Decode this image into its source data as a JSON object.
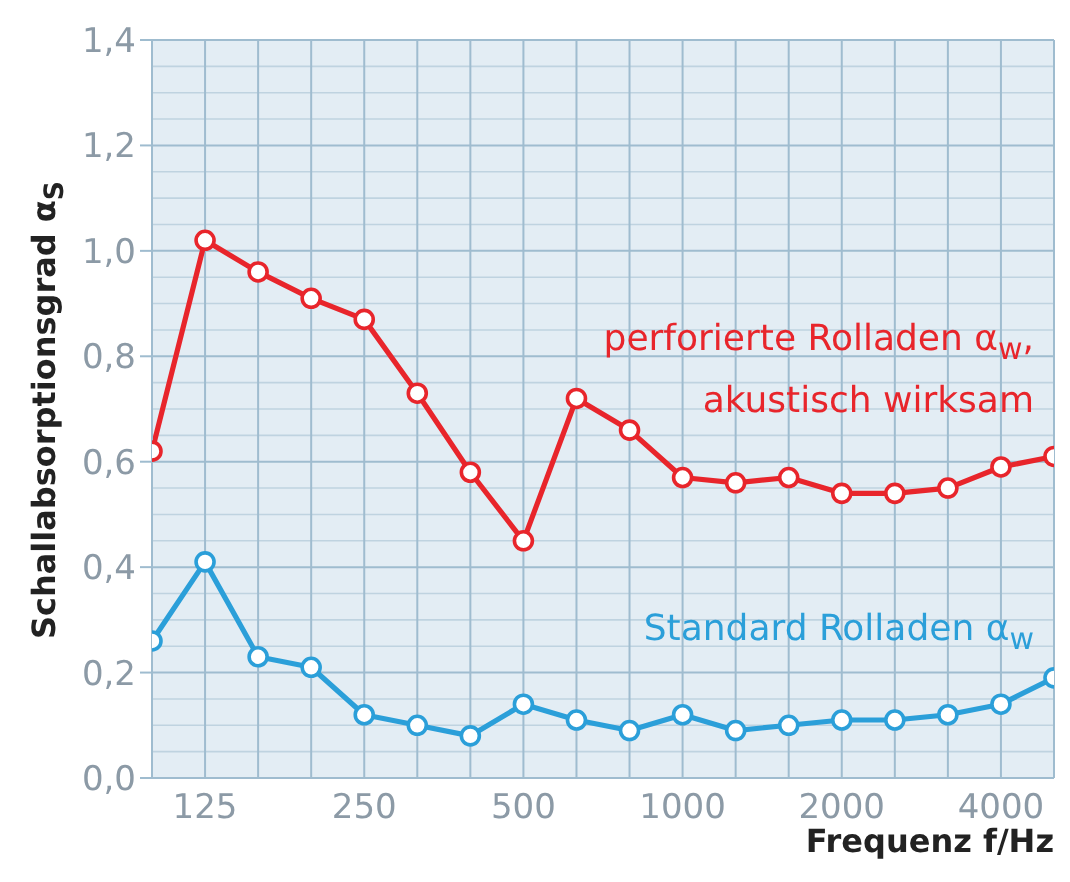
{
  "chart_data": {
    "type": "line",
    "xlabel": "Frequenz f/Hz",
    "ylabel": "Schallabsorptionsgrad α$_{S}$",
    "categories": [
      null,
      "125",
      null,
      null,
      "250",
      null,
      null,
      "500",
      null,
      null,
      "1000",
      null,
      null,
      "2000",
      null,
      null,
      "4000",
      null
    ],
    "series": [
      {
        "name": "perforierte Rolladen α$_{w}$,\nakustisch wirksam",
        "color": "#e8252b",
        "values": [
          0.62,
          1.02,
          0.96,
          0.91,
          0.87,
          0.73,
          0.58,
          0.45,
          0.72,
          0.66,
          0.57,
          0.56,
          0.57,
          0.54,
          0.54,
          0.55,
          0.59,
          0.61
        ]
      },
      {
        "name": "Standard Rolladen α$_{w}$",
        "color": "#2b9fd9",
        "values": [
          0.26,
          0.41,
          0.23,
          0.21,
          0.12,
          0.1,
          0.08,
          0.14,
          0.11,
          0.09,
          0.12,
          0.09,
          0.1,
          0.11,
          0.11,
          0.12,
          0.14,
          0.19
        ]
      }
    ],
    "ylim": [
      0,
      1.4
    ],
    "yticks": [
      {
        "value": 0,
        "label": "0,0"
      },
      {
        "value": 0.2,
        "label": "0,2"
      },
      {
        "value": 0.4,
        "label": "0,4"
      },
      {
        "value": 0.6,
        "label": "0,6"
      },
      {
        "value": 0.8,
        "label": "0,8"
      },
      {
        "value": 1,
        "label": "1,0"
      },
      {
        "value": 1.2,
        "label": "1,2"
      },
      {
        "value": 1.4,
        "label": "1,4"
      }
    ],
    "grid": true,
    "marker": "circle",
    "line_style": "solid"
  }
}
